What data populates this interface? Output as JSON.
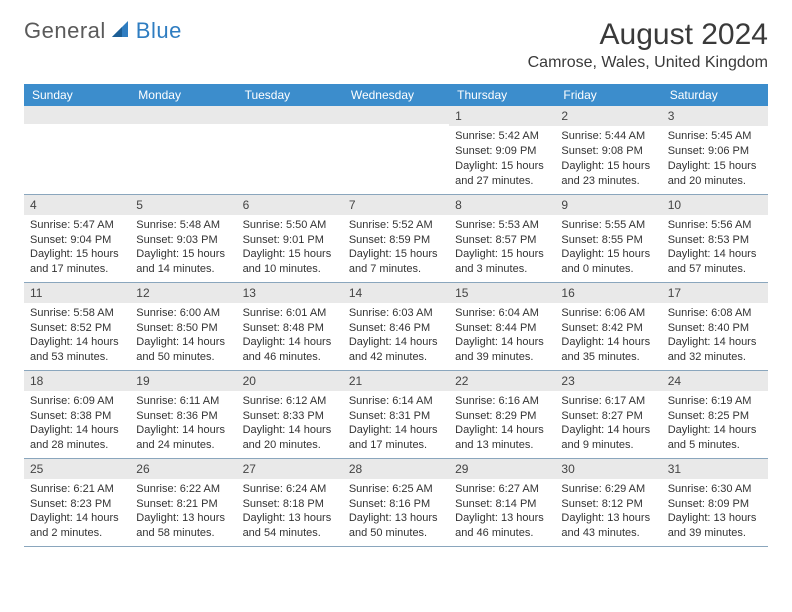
{
  "brand": {
    "general": "General",
    "blue": "Blue"
  },
  "title": "August 2024",
  "location": "Camrose, Wales, United Kingdom",
  "colors": {
    "header_bg": "#3c8dcc",
    "header_fg": "#ffffff",
    "daynum_bg": "#e9e9e9",
    "cell_border": "#8aa6bd",
    "logo_blue": "#2f7dc1",
    "text": "#333333"
  },
  "day_headers": [
    "Sunday",
    "Monday",
    "Tuesday",
    "Wednesday",
    "Thursday",
    "Friday",
    "Saturday"
  ],
  "weeks": [
    [
      null,
      null,
      null,
      null,
      {
        "n": "1",
        "sunrise": "Sunrise: 5:42 AM",
        "sunset": "Sunset: 9:09 PM",
        "day1": "Daylight: 15 hours",
        "day2": "and 27 minutes."
      },
      {
        "n": "2",
        "sunrise": "Sunrise: 5:44 AM",
        "sunset": "Sunset: 9:08 PM",
        "day1": "Daylight: 15 hours",
        "day2": "and 23 minutes."
      },
      {
        "n": "3",
        "sunrise": "Sunrise: 5:45 AM",
        "sunset": "Sunset: 9:06 PM",
        "day1": "Daylight: 15 hours",
        "day2": "and 20 minutes."
      }
    ],
    [
      {
        "n": "4",
        "sunrise": "Sunrise: 5:47 AM",
        "sunset": "Sunset: 9:04 PM",
        "day1": "Daylight: 15 hours",
        "day2": "and 17 minutes."
      },
      {
        "n": "5",
        "sunrise": "Sunrise: 5:48 AM",
        "sunset": "Sunset: 9:03 PM",
        "day1": "Daylight: 15 hours",
        "day2": "and 14 minutes."
      },
      {
        "n": "6",
        "sunrise": "Sunrise: 5:50 AM",
        "sunset": "Sunset: 9:01 PM",
        "day1": "Daylight: 15 hours",
        "day2": "and 10 minutes."
      },
      {
        "n": "7",
        "sunrise": "Sunrise: 5:52 AM",
        "sunset": "Sunset: 8:59 PM",
        "day1": "Daylight: 15 hours",
        "day2": "and 7 minutes."
      },
      {
        "n": "8",
        "sunrise": "Sunrise: 5:53 AM",
        "sunset": "Sunset: 8:57 PM",
        "day1": "Daylight: 15 hours",
        "day2": "and 3 minutes."
      },
      {
        "n": "9",
        "sunrise": "Sunrise: 5:55 AM",
        "sunset": "Sunset: 8:55 PM",
        "day1": "Daylight: 15 hours",
        "day2": "and 0 minutes."
      },
      {
        "n": "10",
        "sunrise": "Sunrise: 5:56 AM",
        "sunset": "Sunset: 8:53 PM",
        "day1": "Daylight: 14 hours",
        "day2": "and 57 minutes."
      }
    ],
    [
      {
        "n": "11",
        "sunrise": "Sunrise: 5:58 AM",
        "sunset": "Sunset: 8:52 PM",
        "day1": "Daylight: 14 hours",
        "day2": "and 53 minutes."
      },
      {
        "n": "12",
        "sunrise": "Sunrise: 6:00 AM",
        "sunset": "Sunset: 8:50 PM",
        "day1": "Daylight: 14 hours",
        "day2": "and 50 minutes."
      },
      {
        "n": "13",
        "sunrise": "Sunrise: 6:01 AM",
        "sunset": "Sunset: 8:48 PM",
        "day1": "Daylight: 14 hours",
        "day2": "and 46 minutes."
      },
      {
        "n": "14",
        "sunrise": "Sunrise: 6:03 AM",
        "sunset": "Sunset: 8:46 PM",
        "day1": "Daylight: 14 hours",
        "day2": "and 42 minutes."
      },
      {
        "n": "15",
        "sunrise": "Sunrise: 6:04 AM",
        "sunset": "Sunset: 8:44 PM",
        "day1": "Daylight: 14 hours",
        "day2": "and 39 minutes."
      },
      {
        "n": "16",
        "sunrise": "Sunrise: 6:06 AM",
        "sunset": "Sunset: 8:42 PM",
        "day1": "Daylight: 14 hours",
        "day2": "and 35 minutes."
      },
      {
        "n": "17",
        "sunrise": "Sunrise: 6:08 AM",
        "sunset": "Sunset: 8:40 PM",
        "day1": "Daylight: 14 hours",
        "day2": "and 32 minutes."
      }
    ],
    [
      {
        "n": "18",
        "sunrise": "Sunrise: 6:09 AM",
        "sunset": "Sunset: 8:38 PM",
        "day1": "Daylight: 14 hours",
        "day2": "and 28 minutes."
      },
      {
        "n": "19",
        "sunrise": "Sunrise: 6:11 AM",
        "sunset": "Sunset: 8:36 PM",
        "day1": "Daylight: 14 hours",
        "day2": "and 24 minutes."
      },
      {
        "n": "20",
        "sunrise": "Sunrise: 6:12 AM",
        "sunset": "Sunset: 8:33 PM",
        "day1": "Daylight: 14 hours",
        "day2": "and 20 minutes."
      },
      {
        "n": "21",
        "sunrise": "Sunrise: 6:14 AM",
        "sunset": "Sunset: 8:31 PM",
        "day1": "Daylight: 14 hours",
        "day2": "and 17 minutes."
      },
      {
        "n": "22",
        "sunrise": "Sunrise: 6:16 AM",
        "sunset": "Sunset: 8:29 PM",
        "day1": "Daylight: 14 hours",
        "day2": "and 13 minutes."
      },
      {
        "n": "23",
        "sunrise": "Sunrise: 6:17 AM",
        "sunset": "Sunset: 8:27 PM",
        "day1": "Daylight: 14 hours",
        "day2": "and 9 minutes."
      },
      {
        "n": "24",
        "sunrise": "Sunrise: 6:19 AM",
        "sunset": "Sunset: 8:25 PM",
        "day1": "Daylight: 14 hours",
        "day2": "and 5 minutes."
      }
    ],
    [
      {
        "n": "25",
        "sunrise": "Sunrise: 6:21 AM",
        "sunset": "Sunset: 8:23 PM",
        "day1": "Daylight: 14 hours",
        "day2": "and 2 minutes."
      },
      {
        "n": "26",
        "sunrise": "Sunrise: 6:22 AM",
        "sunset": "Sunset: 8:21 PM",
        "day1": "Daylight: 13 hours",
        "day2": "and 58 minutes."
      },
      {
        "n": "27",
        "sunrise": "Sunrise: 6:24 AM",
        "sunset": "Sunset: 8:18 PM",
        "day1": "Daylight: 13 hours",
        "day2": "and 54 minutes."
      },
      {
        "n": "28",
        "sunrise": "Sunrise: 6:25 AM",
        "sunset": "Sunset: 8:16 PM",
        "day1": "Daylight: 13 hours",
        "day2": "and 50 minutes."
      },
      {
        "n": "29",
        "sunrise": "Sunrise: 6:27 AM",
        "sunset": "Sunset: 8:14 PM",
        "day1": "Daylight: 13 hours",
        "day2": "and 46 minutes."
      },
      {
        "n": "30",
        "sunrise": "Sunrise: 6:29 AM",
        "sunset": "Sunset: 8:12 PM",
        "day1": "Daylight: 13 hours",
        "day2": "and 43 minutes."
      },
      {
        "n": "31",
        "sunrise": "Sunrise: 6:30 AM",
        "sunset": "Sunset: 8:09 PM",
        "day1": "Daylight: 13 hours",
        "day2": "and 39 minutes."
      }
    ]
  ]
}
